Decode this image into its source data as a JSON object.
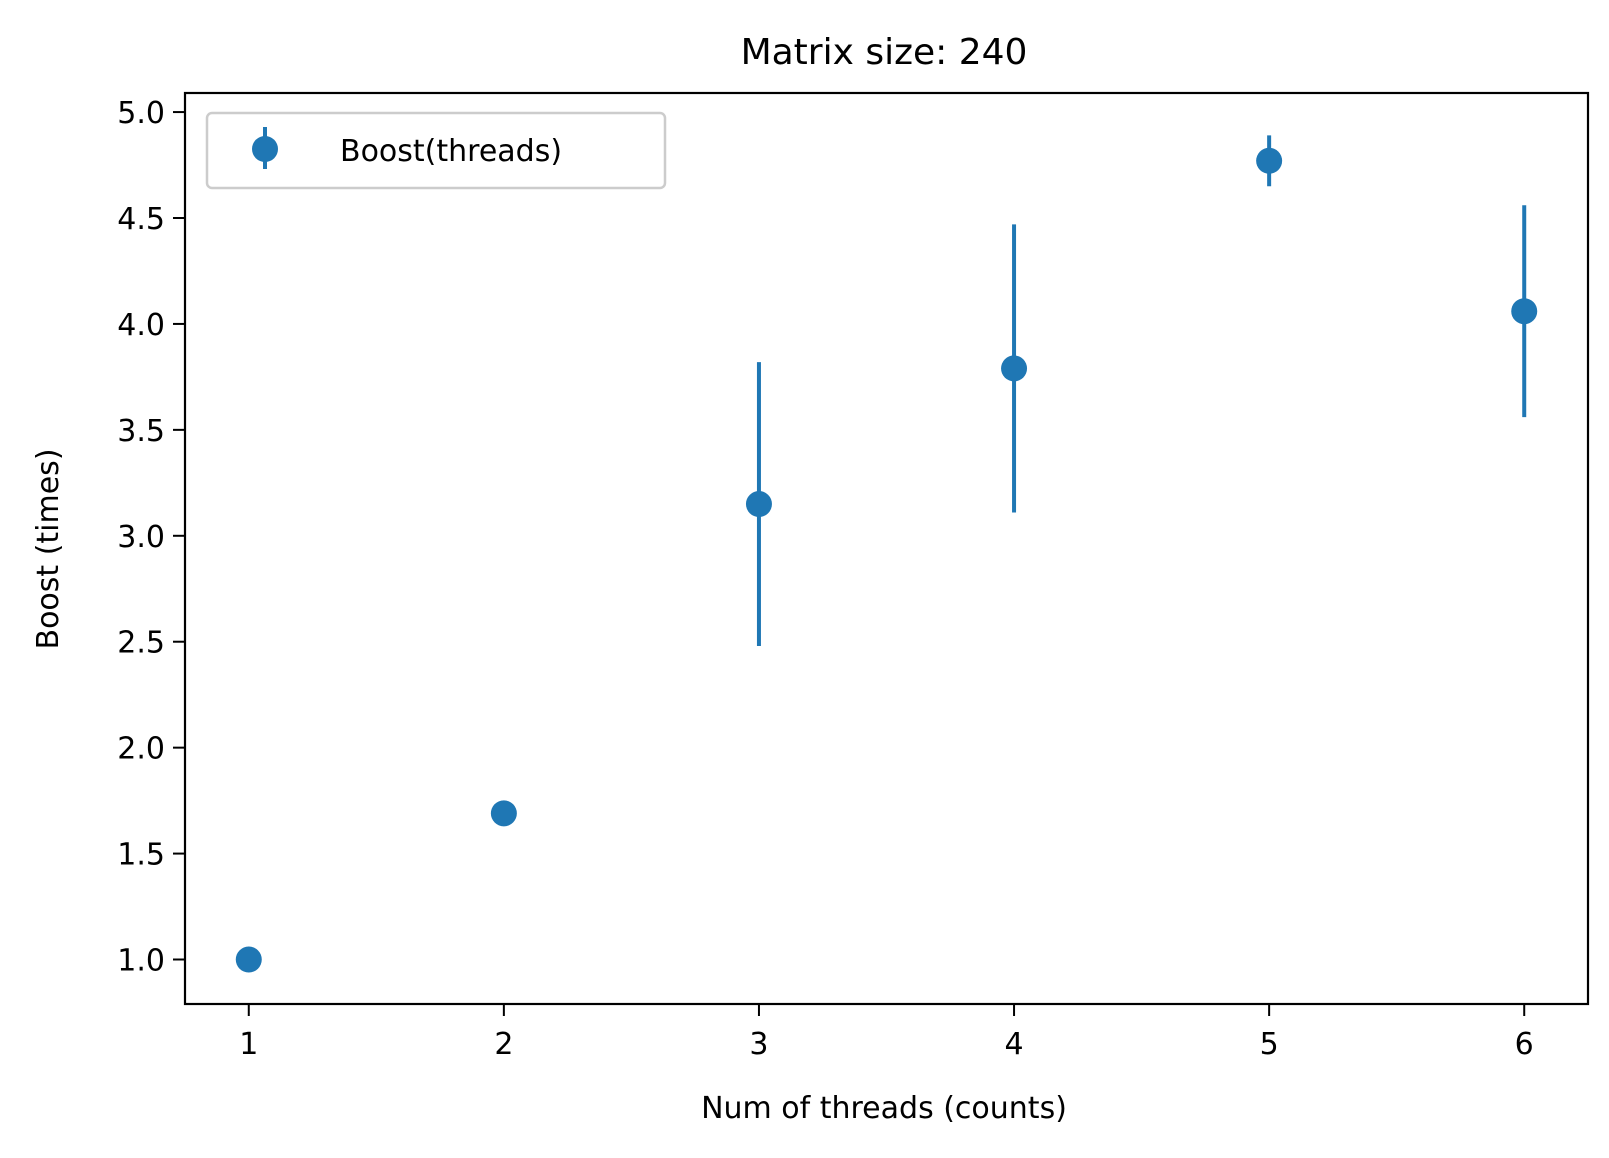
{
  "chart_data": {
    "type": "scatter",
    "title": "Matrix size: 240",
    "xlabel": "Num of threads (counts)",
    "ylabel": "Boost (times)",
    "xlim": [
      0.75,
      6.25
    ],
    "ylim": [
      0.79,
      5.09
    ],
    "x_ticks": [
      1,
      2,
      3,
      4,
      5,
      6
    ],
    "x_tick_labels": [
      "1",
      "2",
      "3",
      "4",
      "5",
      "6"
    ],
    "y_ticks": [
      1.0,
      1.5,
      2.0,
      2.5,
      3.0,
      3.5,
      4.0,
      4.5,
      5.0
    ],
    "y_tick_labels": [
      "1.0",
      "1.5",
      "2.0",
      "2.5",
      "3.0",
      "3.5",
      "4.0",
      "4.5",
      "5.0"
    ],
    "grid": false,
    "legend_position": "top-left",
    "series": [
      {
        "name": "Boost(threads)",
        "color": "#1f77b4",
        "marker": "circle",
        "error_bars": true,
        "points": [
          {
            "x": 1,
            "y": 1.0,
            "yerr": 0.0
          },
          {
            "x": 2,
            "y": 1.69,
            "yerr": 0.0
          },
          {
            "x": 3,
            "y": 3.15,
            "yerr": 0.67
          },
          {
            "x": 4,
            "y": 3.79,
            "yerr": 0.68
          },
          {
            "x": 5,
            "y": 4.77,
            "yerr": 0.12
          },
          {
            "x": 6,
            "y": 4.06,
            "yerr": 0.5
          }
        ]
      }
    ]
  }
}
